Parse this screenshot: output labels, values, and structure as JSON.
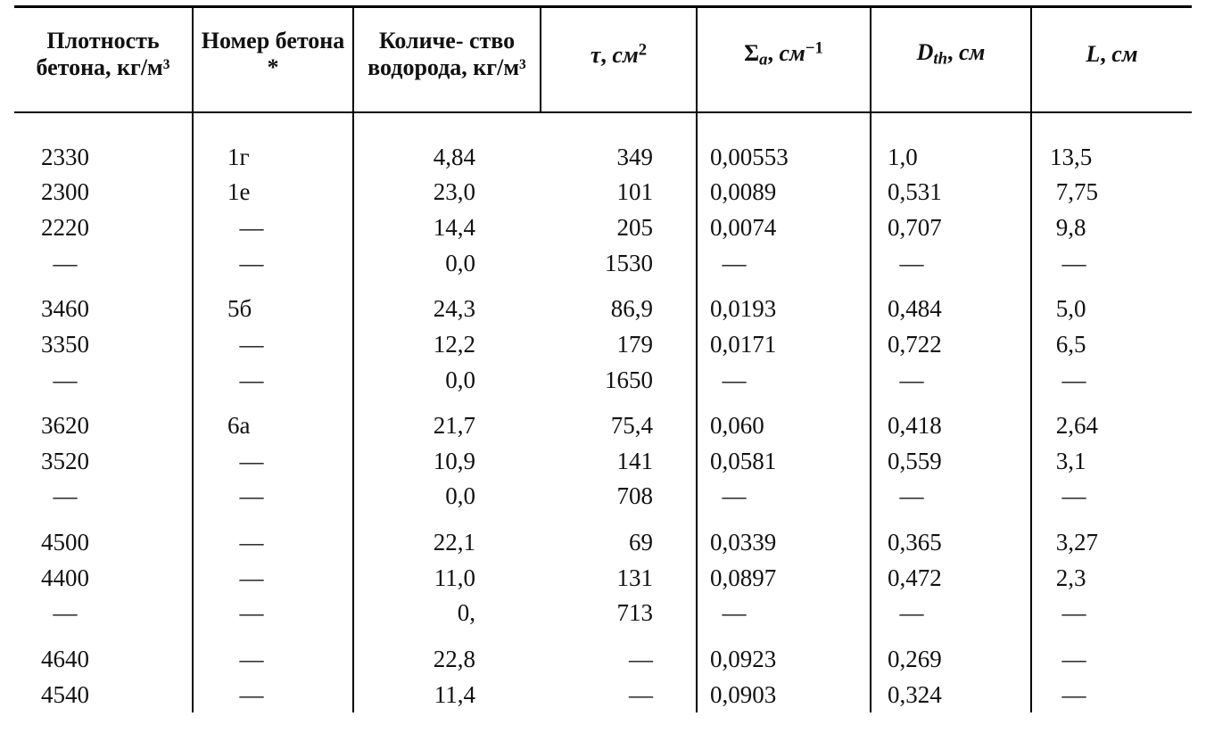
{
  "table": {
    "headers": {
      "c1": "Плотность\nбетона,\nкг/м³",
      "c2": "Номер\nбетона *",
      "c3": "Количе-\nство\nводорода,\nкг/м³"
    },
    "rows": [
      {
        "c1": "2330",
        "c2": "1г",
        "c3": "4,84",
        "c4": "349",
        "c5": "0,00553",
        "c6": "1,0",
        "c7": "13,5"
      },
      {
        "c1": "2300",
        "c2": "1е",
        "c3": "23,0",
        "c4": "101",
        "c5": "0,0089",
        "c6": "0,531",
        "c7": "7,75"
      },
      {
        "c1": "2220",
        "c2": "—",
        "c3": "14,4",
        "c4": "205",
        "c5": "0,0074",
        "c6": "0,707",
        "c7": "9,8"
      },
      {
        "c1": "—",
        "c2": "—",
        "c3": "0,0",
        "c4": "1530",
        "c5": "—",
        "c6": "—",
        "c7": "—"
      },
      {
        "break": true,
        "c1": "3460",
        "c2": "5б",
        "c3": "24,3",
        "c4": "86,9",
        "c5": "0,0193",
        "c6": "0,484",
        "c7": "5,0"
      },
      {
        "c1": "3350",
        "c2": "—",
        "c3": "12,2",
        "c4": "179",
        "c5": "0,0171",
        "c6": "0,722",
        "c7": "6,5"
      },
      {
        "c1": "—",
        "c2": "—",
        "c3": "0,0",
        "c4": "1650",
        "c5": "—",
        "c6": "—",
        "c7": "—"
      },
      {
        "break": true,
        "c1": "3620",
        "c2": "6а",
        "c3": "21,7",
        "c4": "75,4",
        "c5": "0,060",
        "c6": "0,418",
        "c7": "2,64"
      },
      {
        "c1": "3520",
        "c2": "—",
        "c3": "10,9",
        "c4": "141",
        "c5": "0,0581",
        "c6": "0,559",
        "c7": "3,1"
      },
      {
        "c1": "—",
        "c2": "—",
        "c3": "0,0",
        "c4": "708",
        "c5": "—",
        "c6": "—",
        "c7": "—"
      },
      {
        "break": true,
        "c1": "4500",
        "c2": "—",
        "c3": "22,1",
        "c4": "69",
        "c5": "0,0339",
        "c6": "0,365",
        "c7": "3,27"
      },
      {
        "c1": "4400",
        "c2": "—",
        "c3": "11,0",
        "c4": "131",
        "c5": "0,0897",
        "c6": "0,472",
        "c7": "2,3"
      },
      {
        "c1": "—",
        "c2": "—",
        "c3": "0,",
        "c4": "713",
        "c5": "—",
        "c6": "—",
        "c7": "—"
      },
      {
        "break": true,
        "c1": "4640",
        "c2": "—",
        "c3": "22,8",
        "c4": "—",
        "c5": "0,0923",
        "c6": "0,269",
        "c7": "—"
      },
      {
        "c1": "4540",
        "c2": "—",
        "c3": "11,4",
        "c4": "—",
        "c5": "0,0903",
        "c6": "0,324",
        "c7": "—"
      }
    ]
  }
}
